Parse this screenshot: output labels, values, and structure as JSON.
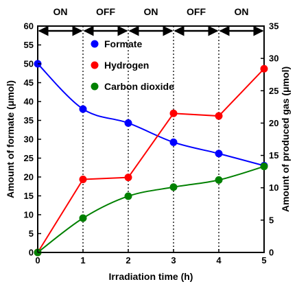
{
  "chart_data": {
    "type": "line",
    "title": "",
    "xlabel": "Irradiation time (h)",
    "ylabel_left": "Amount of formate (μmol)",
    "ylabel_right": "Amount of produced gas (μmol)",
    "xlim": [
      0,
      5
    ],
    "ylim_left": [
      0,
      60
    ],
    "ylim_right": [
      0,
      35
    ],
    "x_ticks": [
      "0",
      "1",
      "2",
      "3",
      "4",
      "5"
    ],
    "y_left_ticks": [
      "0",
      "5",
      "10",
      "15",
      "20",
      "25",
      "30",
      "35",
      "40",
      "45",
      "50",
      "55",
      "60"
    ],
    "y_right_ticks": [
      "0",
      "5",
      "10",
      "15",
      "20",
      "25",
      "30",
      "35"
    ],
    "phases": [
      "ON",
      "OFF",
      "ON",
      "OFF",
      "ON"
    ],
    "legend_position": "top-center",
    "series": [
      {
        "name": "Formate",
        "axis": "left",
        "color": "#0000ff",
        "curve": "smooth",
        "x": [
          0,
          1,
          2,
          3,
          4,
          5
        ],
        "y": [
          50.0,
          38.0,
          34.3,
          29.2,
          26.2,
          23.0
        ]
      },
      {
        "name": "Hydrogen",
        "axis": "right",
        "color": "#ff0000",
        "curve": "straight",
        "x": [
          0,
          1,
          2,
          3,
          4,
          5
        ],
        "y": [
          0.0,
          11.3,
          11.6,
          21.5,
          21.1,
          28.4
        ]
      },
      {
        "name": "Carbon dioxide",
        "axis": "right",
        "color": "#008000",
        "curve": "smooth",
        "x": [
          0,
          1,
          2,
          3,
          4,
          5
        ],
        "y": [
          0.0,
          5.3,
          8.7,
          10.1,
          11.2,
          13.3
        ]
      }
    ]
  }
}
